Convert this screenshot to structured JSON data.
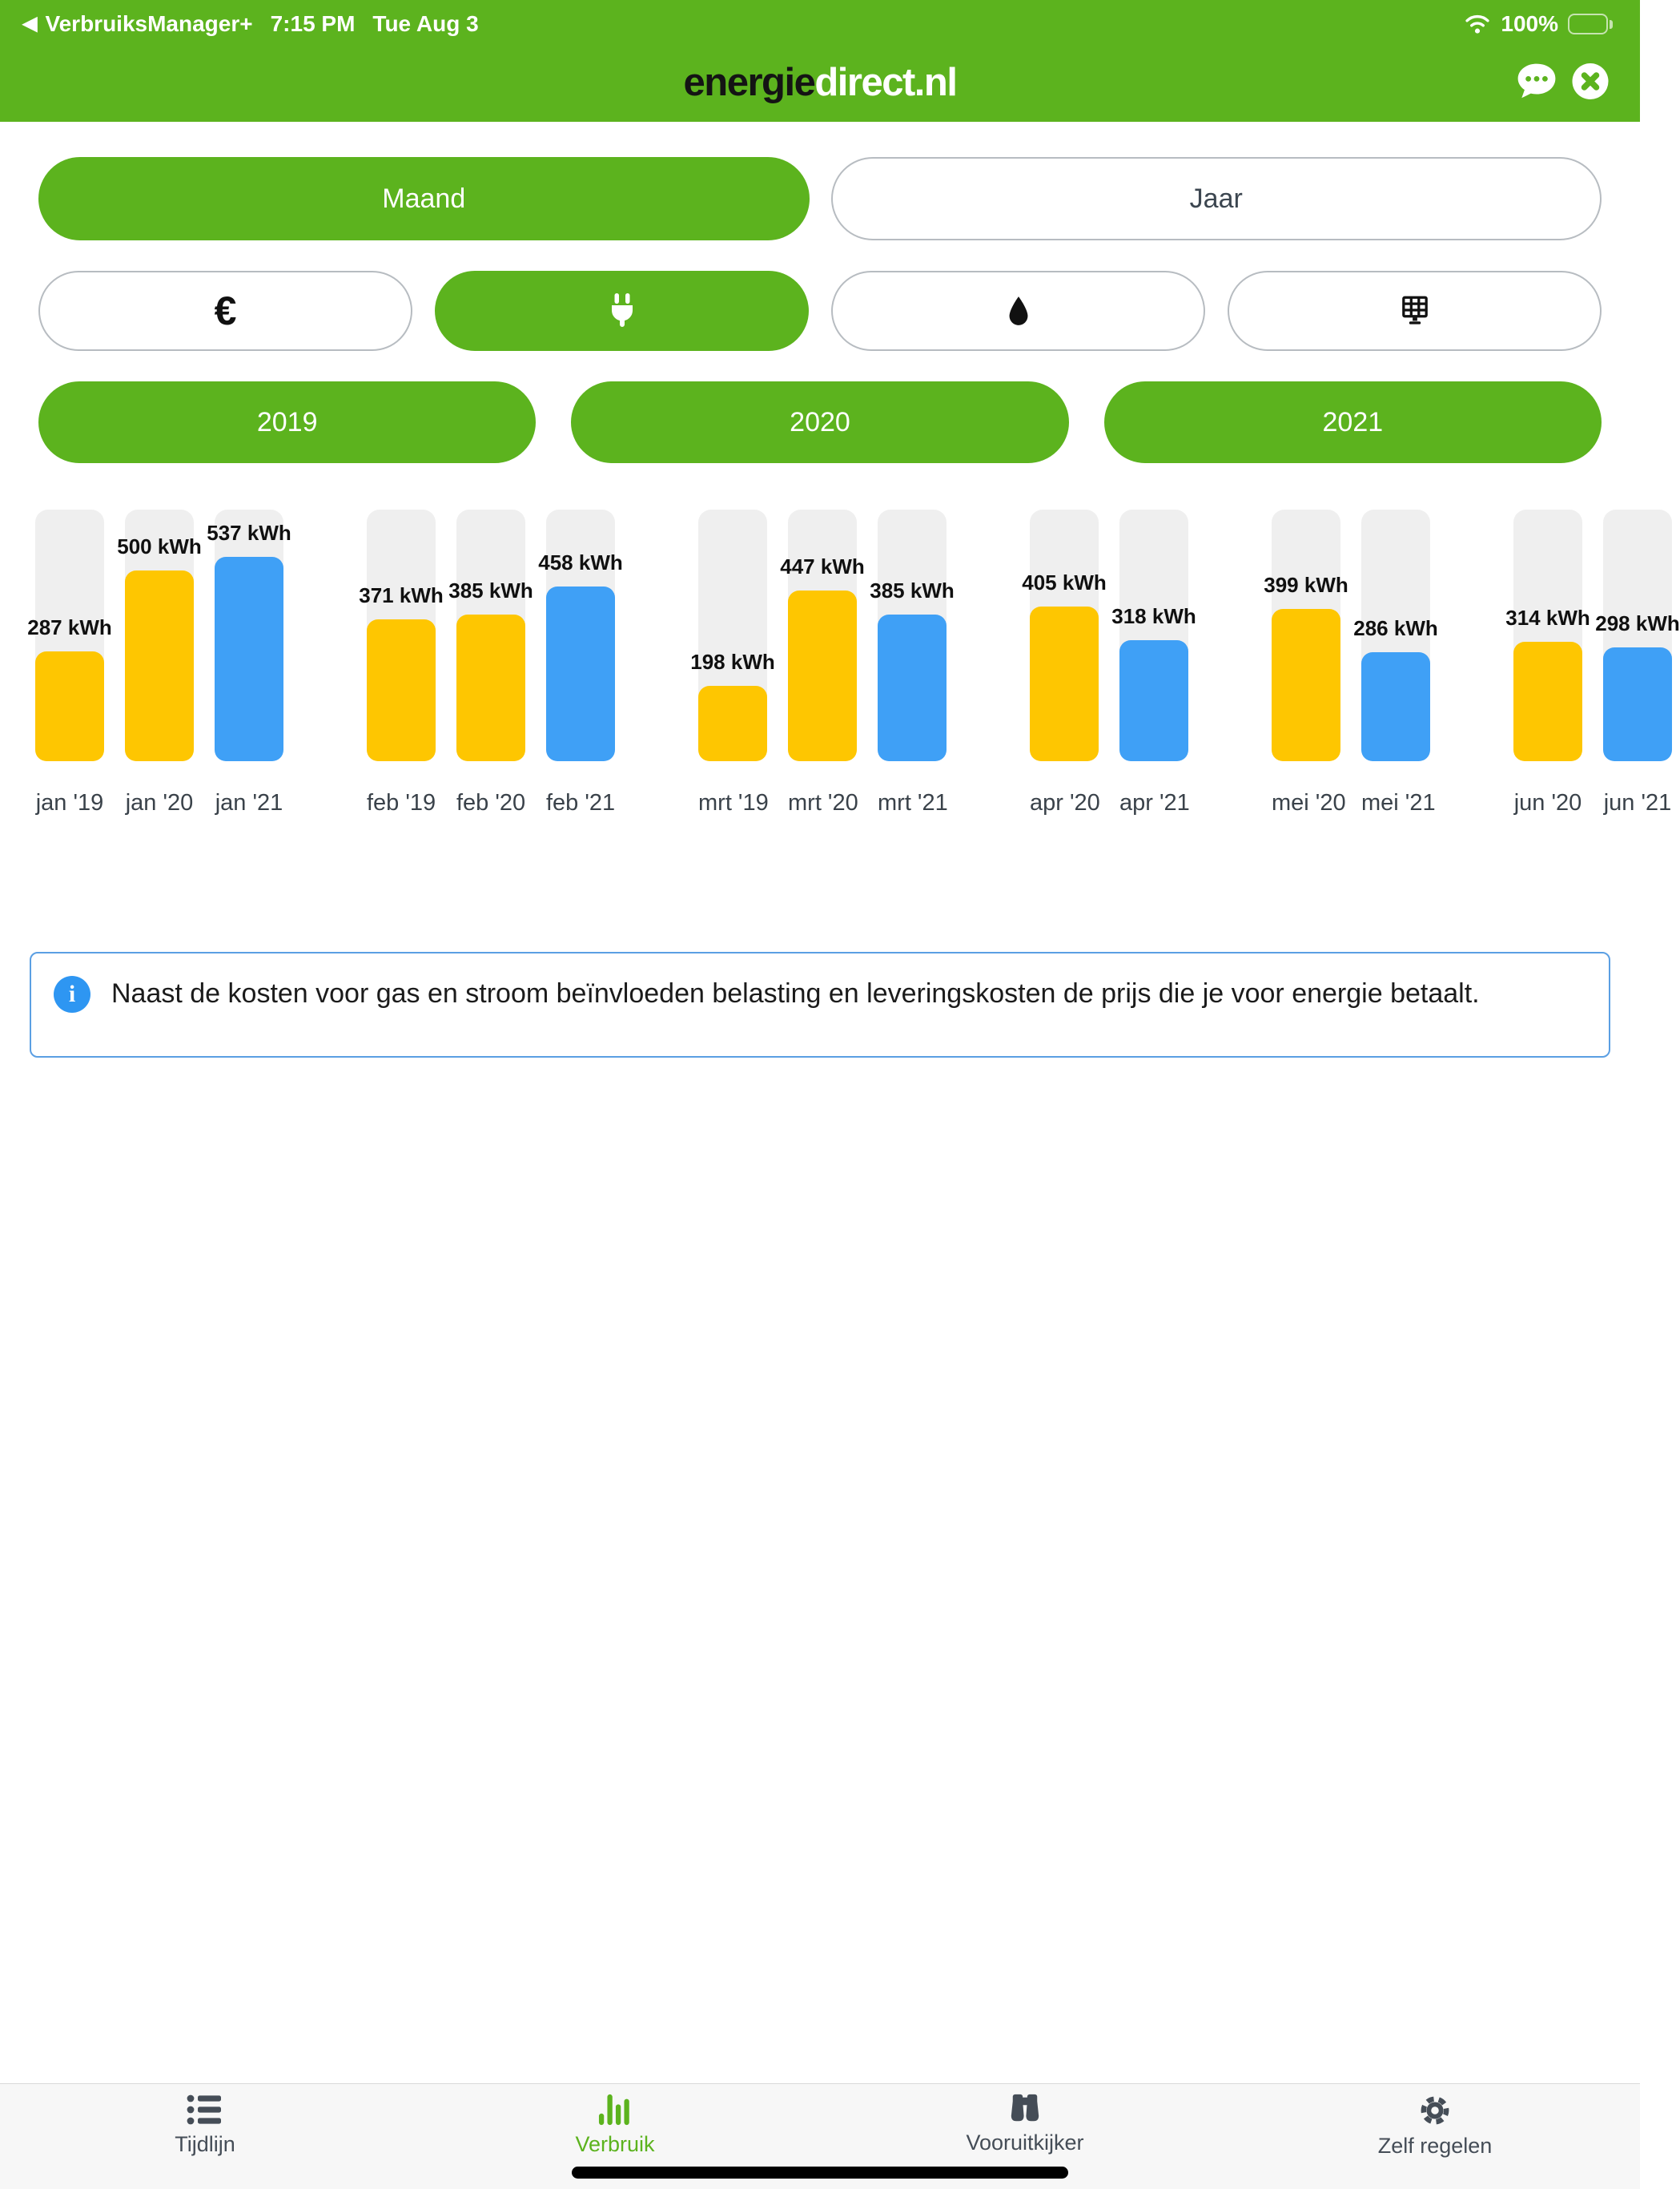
{
  "status_bar": {
    "back_chevron": "◀",
    "back_app": "VerbruiksManager+",
    "time": "7:15 PM",
    "date": "Tue Aug 3",
    "battery_pct": "100%",
    "icons": [
      "wifi-icon",
      "battery-icon"
    ]
  },
  "header": {
    "logo_black": "energie",
    "logo_white": "direct.nl",
    "actions": [
      "chat-icon",
      "close-icon"
    ],
    "background_color": "#5CB31E"
  },
  "period_tabs": [
    {
      "label": "Maand",
      "active": true
    },
    {
      "label": "Jaar",
      "active": false
    }
  ],
  "type_tabs": [
    {
      "name": "cost",
      "icon": "euro-icon",
      "glyph": "€",
      "active": false
    },
    {
      "name": "electricity",
      "icon": "plug-icon",
      "active": true
    },
    {
      "name": "gas",
      "icon": "gas-drop-icon",
      "active": false
    },
    {
      "name": "solar",
      "icon": "solar-panel-icon",
      "active": false
    }
  ],
  "year_buttons": [
    "2019",
    "2020",
    "2021"
  ],
  "chart_data": {
    "type": "bar",
    "unit": "kWh",
    "y_max_scale": 660,
    "grid": false,
    "track_color": "#EFEFEF",
    "bar_colors_by_year": {
      "2019": "#FEC601",
      "2020": "#FEC601",
      "2021": "#3FA0F6"
    },
    "groups": [
      {
        "month": "jan",
        "bars": [
          {
            "axis_label": "jan '19",
            "year": "2019",
            "value": 287,
            "value_label": "287 kWh"
          },
          {
            "axis_label": "jan '20",
            "year": "2020",
            "value": 500,
            "value_label": "500 kWh"
          },
          {
            "axis_label": "jan '21",
            "year": "2021",
            "value": 537,
            "value_label": "537 kWh"
          }
        ]
      },
      {
        "month": "feb",
        "bars": [
          {
            "axis_label": "feb '19",
            "year": "2019",
            "value": 371,
            "value_label": "371 kWh"
          },
          {
            "axis_label": "feb '20",
            "year": "2020",
            "value": 385,
            "value_label": "385 kWh"
          },
          {
            "axis_label": "feb '21",
            "year": "2021",
            "value": 458,
            "value_label": "458 kWh"
          }
        ]
      },
      {
        "month": "mrt",
        "bars": [
          {
            "axis_label": "mrt '19",
            "year": "2019",
            "value": 198,
            "value_label": "198 kWh"
          },
          {
            "axis_label": "mrt '20",
            "year": "2020",
            "value": 447,
            "value_label": "447 kWh"
          },
          {
            "axis_label": "mrt '21",
            "year": "2021",
            "value": 385,
            "value_label": "385 kWh"
          }
        ]
      },
      {
        "month": "apr",
        "bars": [
          {
            "axis_label": "apr '20",
            "year": "2020",
            "value": 405,
            "value_label": "405 kWh"
          },
          {
            "axis_label": "apr '21",
            "year": "2021",
            "value": 318,
            "value_label": "318 kWh"
          }
        ]
      },
      {
        "month": "mei",
        "bars": [
          {
            "axis_label": "mei '20",
            "year": "2020",
            "value": 399,
            "value_label": "399 kWh"
          },
          {
            "axis_label": "mei '21",
            "year": "2021",
            "value": 286,
            "value_label": "286 kWh"
          }
        ]
      },
      {
        "month": "jun",
        "bars": [
          {
            "axis_label": "jun '20",
            "year": "2020",
            "value": 314,
            "value_label": "314 kWh"
          },
          {
            "axis_label": "jun '21",
            "year": "2021",
            "value": 298,
            "value_label": "298 kWh"
          }
        ]
      }
    ]
  },
  "info": {
    "icon_glyph": "i",
    "text": "Naast de kosten voor gas en stroom beïnvloeden belasting en leveringskosten de prijs die je voor energie betaalt.",
    "border_color": "#5B9FE3",
    "icon_color": "#2E96F2"
  },
  "tab_bar": {
    "items": [
      {
        "label": "Tijdlijn",
        "icon": "timeline-list-icon",
        "active": false
      },
      {
        "label": "Verbruik",
        "icon": "bar-chart-icon",
        "active": true
      },
      {
        "label": "Vooruitkijker",
        "icon": "binoculars-icon",
        "active": false
      },
      {
        "label": "Zelf regelen",
        "icon": "gear-icon",
        "active": false
      }
    ],
    "active_color": "#5CB31E",
    "inactive_color": "#454D57"
  }
}
